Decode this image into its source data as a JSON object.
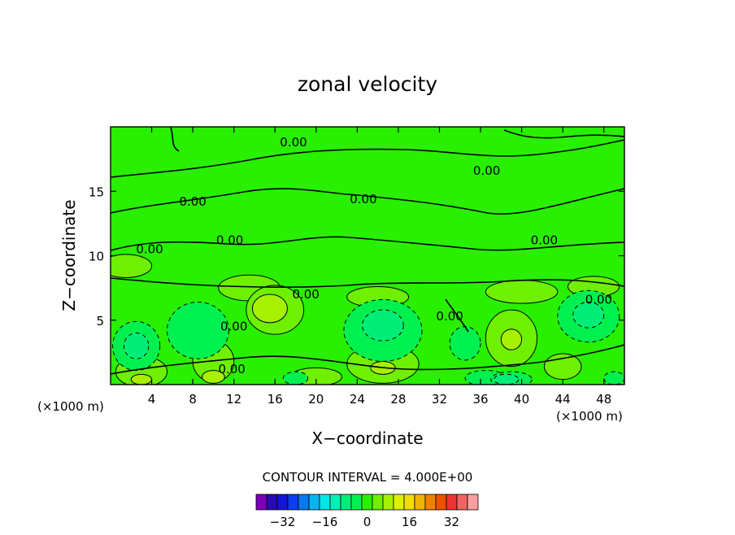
{
  "chart_data": {
    "type": "heatmap",
    "title": "zonal velocity",
    "xlabel": "X−coordinate",
    "ylabel": "Z−coordinate",
    "x_unit_label": "(×1000 m)",
    "y_unit_label": "(×1000 m)",
    "xlim": [
      0,
      50
    ],
    "ylim": [
      0,
      20
    ],
    "x_ticks": [
      4,
      8,
      12,
      16,
      20,
      24,
      28,
      32,
      36,
      40,
      44,
      48
    ],
    "y_ticks": [
      5,
      10,
      15
    ],
    "contour_interval_text": "CONTOUR INTERVAL = 4.000E+00",
    "contour_label": "0.00",
    "contour_label_points": [
      [
        17.8,
        18.8
      ],
      [
        36.6,
        16.6
      ],
      [
        8.0,
        14.2
      ],
      [
        24.6,
        14.4
      ],
      [
        11.6,
        11.2
      ],
      [
        3.8,
        10.5
      ],
      [
        42.2,
        11.2
      ],
      [
        19.0,
        7.0
      ],
      [
        12.0,
        4.5
      ],
      [
        33.0,
        5.3
      ],
      [
        47.5,
        6.6
      ],
      [
        11.8,
        1.2
      ]
    ],
    "colorbar": {
      "tick_labels": [
        "−32",
        "−16",
        "0",
        "16",
        "32"
      ],
      "tick_values": [
        -32,
        -16,
        0,
        16,
        32
      ],
      "levels": [
        -40,
        -36,
        -32,
        -28,
        -24,
        -20,
        -16,
        -12,
        -8,
        -4,
        0,
        4,
        8,
        12,
        16,
        20,
        24,
        28,
        32,
        36,
        40
      ],
      "colors": [
        "#7a00b8",
        "#2a0ab0",
        "#1414d8",
        "#0a3cf0",
        "#0a78f0",
        "#05b4f0",
        "#00e6e6",
        "#00f0b4",
        "#00ee78",
        "#00f050",
        "#28f000",
        "#6ef000",
        "#a6f000",
        "#dcf000",
        "#f0dc00",
        "#f0b400",
        "#f08200",
        "#f05000",
        "#f03232",
        "#f06464",
        "#f8a0a0"
      ]
    },
    "fields": [
      {
        "level": 4,
        "blobs": [
          [
            1.5,
            9.2,
            2.5,
            0.9
          ],
          [
            13.5,
            7.5,
            3.0,
            1.0
          ],
          [
            26.0,
            6.8,
            3.0,
            0.8
          ],
          [
            40.0,
            7.2,
            3.5,
            0.9
          ],
          [
            47.0,
            7.6,
            2.5,
            0.8
          ],
          [
            16.0,
            5.8,
            2.8,
            1.9
          ],
          [
            10.0,
            1.8,
            2.0,
            1.6
          ],
          [
            26.5,
            1.6,
            3.5,
            1.5
          ],
          [
            39.0,
            3.6,
            2.5,
            2.2
          ],
          [
            3.0,
            1.0,
            2.5,
            1.2
          ],
          [
            20.0,
            0.6,
            2.5,
            0.7
          ],
          [
            44.0,
            1.4,
            1.8,
            1.0
          ]
        ]
      },
      {
        "level": 8,
        "blobs": [
          [
            15.5,
            5.9,
            1.7,
            1.1
          ],
          [
            39.0,
            3.5,
            1.0,
            0.8
          ],
          [
            10.0,
            0.6,
            1.1,
            0.5
          ],
          [
            26.5,
            1.3,
            1.2,
            0.5
          ],
          [
            3.0,
            0.4,
            1.0,
            0.4
          ]
        ]
      },
      {
        "level": -4,
        "blobs": [
          [
            8.5,
            4.2,
            3.0,
            2.2
          ],
          [
            26.5,
            4.2,
            3.8,
            2.4
          ],
          [
            46.5,
            5.3,
            3.0,
            2.0
          ],
          [
            2.5,
            3.0,
            2.3,
            1.9
          ],
          [
            34.5,
            3.2,
            1.5,
            1.3
          ],
          [
            36.5,
            0.5,
            2.0,
            0.6
          ],
          [
            39.0,
            0.4,
            2.0,
            0.6
          ],
          [
            49.0,
            0.5,
            1.0,
            0.5
          ],
          [
            18.0,
            0.5,
            1.2,
            0.5
          ]
        ]
      },
      {
        "level": -8,
        "blobs": [
          [
            26.5,
            4.6,
            2.0,
            1.2
          ],
          [
            2.5,
            3.0,
            1.2,
            1.0
          ],
          [
            46.5,
            5.4,
            1.5,
            1.0
          ],
          [
            38.5,
            0.4,
            1.2,
            0.4
          ]
        ]
      }
    ]
  }
}
